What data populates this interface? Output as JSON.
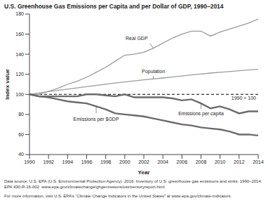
{
  "chart_data": {
    "type": "line",
    "title": "U.S. Greenhouse Gas Emissions per Capita and per Dollar of GDP, 1990–2014",
    "x_label": "Year",
    "y_label": "Index value",
    "x": [
      1990,
      1991,
      1992,
      1993,
      1994,
      1995,
      1996,
      1997,
      1998,
      1999,
      2000,
      2001,
      2002,
      2003,
      2004,
      2005,
      2006,
      2007,
      2008,
      2009,
      2010,
      2011,
      2012,
      2013,
      2014
    ],
    "series": [
      {
        "name": "Real GDP",
        "color": "#9a9a9a",
        "values": [
          100,
          100,
          103,
          106,
          110,
          113,
          117,
          122,
          127,
          133,
          139,
          140,
          142,
          146,
          151,
          156,
          160,
          163,
          163,
          158,
          162,
          165,
          168,
          171,
          175
        ]
      },
      {
        "name": "Population",
        "color": "#9a9a9a",
        "values": [
          100,
          101.3,
          102.7,
          104,
          105.2,
          106.4,
          107.6,
          108.9,
          110.1,
          111.3,
          112.4,
          113.4,
          114.4,
          115.3,
          116.3,
          117.3,
          118.3,
          119.3,
          120.3,
          121.2,
          122,
          122.7,
          123.5,
          124.2,
          125
        ]
      },
      {
        "name": "Emissions per capita",
        "color": "#6b6b6b",
        "values": [
          100,
          98,
          98,
          98,
          98,
          98,
          100,
          100,
          99,
          98,
          100,
          97,
          97,
          97,
          97,
          96,
          94,
          95,
          91,
          86,
          88,
          85,
          81,
          83,
          83
        ]
      },
      {
        "name": "Emissions per $GDP",
        "color": "#6b6b6b",
        "values": [
          100,
          98,
          97,
          95,
          93,
          92,
          91,
          88,
          85,
          81,
          80,
          79,
          78,
          76,
          74,
          72,
          70,
          69,
          67,
          66,
          65,
          63,
          60,
          60,
          59
        ]
      }
    ],
    "annotations": [
      {
        "text": "1990 = 100",
        "y": 100,
        "color": "#000000",
        "line_style": "dashed"
      }
    ],
    "xlim": [
      1990,
      2014
    ],
    "xticks": [
      1990,
      1992,
      1994,
      1996,
      1998,
      2000,
      2002,
      2004,
      2006,
      2008,
      2010,
      2012,
      2014
    ],
    "ylim": [
      40,
      180
    ],
    "yticks": [
      40,
      60,
      80,
      100,
      120,
      140,
      160,
      180
    ],
    "grid": false,
    "source": "Data source: U.S. EPA (U.S. Environmental Protection Agency). 2016. Inventory of U.S. greenhouse gas emissions and sinks: 1990–2014. EPA 430-R-16-002. www.epa.gov/climatechange/ghgemissions/usinventoryreport.html.",
    "footnote": "For more information, visit U.S. EPA’s “Climate Change Indicators in the United States” at www.epa.gov/climate-indicators."
  }
}
